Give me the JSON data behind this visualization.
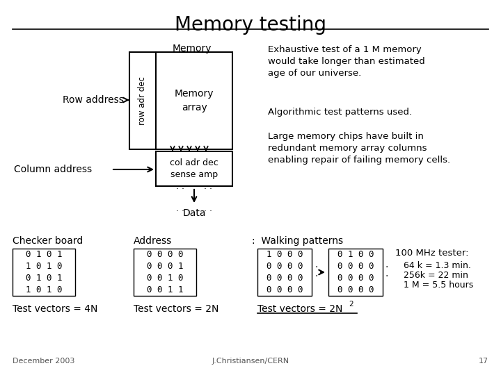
{
  "title": "Memory testing",
  "bg_color": "#ffffff",
  "title_fontsize": 20,
  "footnote_left": "December 2003",
  "footnote_center": "J.Christiansen/CERN",
  "footnote_right": "17",
  "right_text_1": "Exhaustive test of a 1 M memory\nwould take longer than estimated\nage of our universe.",
  "right_text_2": "Algorithmic test patterns used.",
  "right_text_3": "Large memory chips have built in\nredundant memory array columns\nenabling repair of failing memory cells.",
  "checker_label": "Checker board",
  "address_label": "Address",
  "walking_label": ":  Walking patterns",
  "tester_label": "100 MHz tester:",
  "tester_lines": [
    "64 k = 1.3 min.",
    "256k = 22 min",
    "1 M = 5.5 hours"
  ],
  "checker_matrix": [
    "0 1 0 1",
    "1 0 1 0",
    "0 1 0 1",
    "1 0 1 0"
  ],
  "address_matrix": [
    "0 0 0 0",
    "0 0 0 1",
    "0 0 1 0",
    "0 0 1 1"
  ],
  "walking1_matrix": [
    "1 0 0 0",
    "0 0 0 0",
    "0 0 0 0",
    "0 0 0 0"
  ],
  "walking2_matrix": [
    "0 1 0 0",
    "0 0 0 0",
    "0 0 0 0",
    "0 0 0 0"
  ],
  "tv_checker": "Test vectors = 4N",
  "tv_address": "Test vectors = 2N",
  "tv_walking": "Test vectors = 2N",
  "tv_walking_exp": "2",
  "row_adr_arrows_y": [
    100,
    115,
    130,
    145,
    160
  ],
  "col_adr_arrows_x": [
    248,
    260,
    272,
    284,
    296
  ]
}
